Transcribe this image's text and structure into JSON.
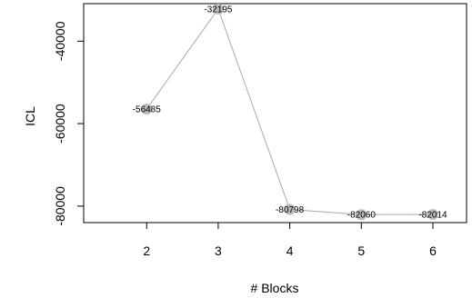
{
  "chart_data": {
    "type": "line",
    "xlabel": "# Blocks",
    "ylabel": "ICL",
    "x": [
      2,
      3,
      4,
      5,
      6
    ],
    "y": [
      -56485,
      -32195,
      -80798,
      -82060,
      -82014
    ],
    "point_labels": [
      "-56485",
      "-32195",
      "-80798",
      "-82060",
      "-82014"
    ],
    "x_ticks": [
      2,
      3,
      4,
      5,
      6
    ],
    "x_tick_labels": [
      "2",
      "3",
      "4",
      "5",
      "6"
    ],
    "y_ticks": [
      -40000,
      -60000,
      -80000
    ],
    "y_tick_labels": [
      "-40000",
      "-60000",
      "-80000"
    ],
    "xlim": [
      1.12,
      6.47
    ],
    "ylim": [
      -84000,
      -30900
    ],
    "grid": false,
    "legend": "none",
    "colors": {
      "line": "#aaaaaa",
      "point": "#bbbbbb",
      "axis": "#000000"
    }
  }
}
